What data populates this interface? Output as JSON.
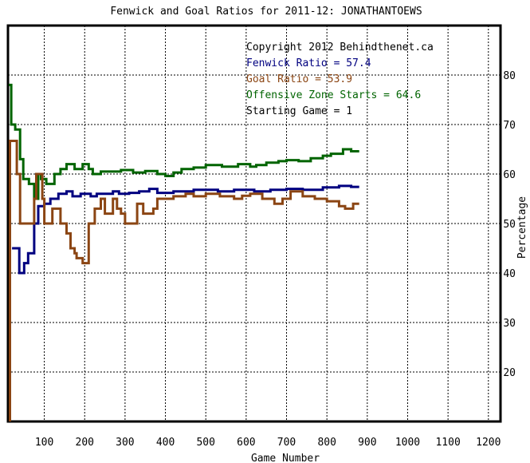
{
  "chart_data": {
    "type": "line",
    "title": "Fenwick and Goal Ratios for 2011-12: JONATHANTOEWS",
    "xlabel": "Game Number",
    "ylabel": "Percentage",
    "xlim": [
      10,
      1230
    ],
    "ylim": [
      10,
      90
    ],
    "x_ticks": [
      100,
      200,
      300,
      400,
      500,
      600,
      700,
      800,
      900,
      1000,
      1100,
      1200
    ],
    "y_ticks": [
      20,
      30,
      40,
      50,
      60,
      70,
      80
    ],
    "grid": true,
    "legend_position": "top-right",
    "annotations": [
      {
        "text": "Copyright 2012 Behindthenet.ca",
        "color": "#000000"
      },
      {
        "text": "Fenwick Ratio = 57.4",
        "color": "#000080"
      },
      {
        "text": "Goal Ratio = 53.9",
        "color": "#8B4513"
      },
      {
        "text": "Offensive Zone Starts = 64.6",
        "color": "#006400"
      },
      {
        "text": "Starting Game = 1",
        "color": "#000000"
      }
    ],
    "series": [
      {
        "color": "#006400",
        "points": [
          [
            12,
            78
          ],
          [
            18,
            78
          ],
          [
            18,
            70
          ],
          [
            28,
            70
          ],
          [
            28,
            69
          ],
          [
            40,
            69
          ],
          [
            40,
            63
          ],
          [
            48,
            63
          ],
          [
            48,
            59
          ],
          [
            62,
            59
          ],
          [
            62,
            58
          ],
          [
            75,
            58
          ],
          [
            75,
            55
          ],
          [
            85,
            55
          ],
          [
            85,
            60
          ],
          [
            92,
            60
          ],
          [
            92,
            59
          ],
          [
            105,
            59
          ],
          [
            105,
            58
          ],
          [
            125,
            58
          ],
          [
            125,
            60
          ],
          [
            140,
            60
          ],
          [
            140,
            61
          ],
          [
            155,
            61
          ],
          [
            155,
            62
          ],
          [
            175,
            62
          ],
          [
            175,
            61
          ],
          [
            195,
            61
          ],
          [
            195,
            62
          ],
          [
            210,
            62
          ],
          [
            210,
            61
          ],
          [
            220,
            61
          ],
          [
            220,
            60
          ],
          [
            240,
            60
          ],
          [
            240,
            60.5
          ],
          [
            290,
            60.5
          ],
          [
            290,
            60.8
          ],
          [
            320,
            60.8
          ],
          [
            320,
            60.3
          ],
          [
            350,
            60.3
          ],
          [
            350,
            60.6
          ],
          [
            380,
            60.6
          ],
          [
            380,
            60
          ],
          [
            400,
            60
          ],
          [
            400,
            59.6
          ],
          [
            420,
            59.6
          ],
          [
            420,
            60.3
          ],
          [
            440,
            60.3
          ],
          [
            440,
            61
          ],
          [
            470,
            61
          ],
          [
            470,
            61.3
          ],
          [
            500,
            61.3
          ],
          [
            500,
            61.8
          ],
          [
            540,
            61.8
          ],
          [
            540,
            61.5
          ],
          [
            580,
            61.5
          ],
          [
            580,
            62
          ],
          [
            610,
            62
          ],
          [
            610,
            61.5
          ],
          [
            625,
            61.5
          ],
          [
            625,
            61.8
          ],
          [
            650,
            61.8
          ],
          [
            650,
            62.3
          ],
          [
            680,
            62.3
          ],
          [
            680,
            62.6
          ],
          [
            700,
            62.6
          ],
          [
            700,
            62.8
          ],
          [
            730,
            62.8
          ],
          [
            730,
            62.6
          ],
          [
            760,
            62.6
          ],
          [
            760,
            63.2
          ],
          [
            790,
            63.2
          ],
          [
            790,
            63.7
          ],
          [
            810,
            63.7
          ],
          [
            810,
            64.1
          ],
          [
            840,
            64.1
          ],
          [
            840,
            65
          ],
          [
            860,
            65
          ],
          [
            860,
            64.6
          ],
          [
            880,
            64.6
          ]
        ]
      },
      {
        "color": "#000080",
        "points": [
          [
            20,
            45
          ],
          [
            38,
            45
          ],
          [
            38,
            40
          ],
          [
            50,
            40
          ],
          [
            50,
            42
          ],
          [
            60,
            42
          ],
          [
            60,
            44
          ],
          [
            75,
            44
          ],
          [
            75,
            50
          ],
          [
            85,
            50
          ],
          [
            85,
            53.5
          ],
          [
            100,
            53.5
          ],
          [
            100,
            54
          ],
          [
            115,
            54
          ],
          [
            115,
            55
          ],
          [
            135,
            55
          ],
          [
            135,
            56
          ],
          [
            155,
            56
          ],
          [
            155,
            56.5
          ],
          [
            170,
            56.5
          ],
          [
            170,
            55.5
          ],
          [
            190,
            55.5
          ],
          [
            190,
            56
          ],
          [
            215,
            56
          ],
          [
            215,
            55.5
          ],
          [
            230,
            55.5
          ],
          [
            230,
            56
          ],
          [
            270,
            56
          ],
          [
            270,
            56.5
          ],
          [
            285,
            56.5
          ],
          [
            285,
            56
          ],
          [
            310,
            56
          ],
          [
            310,
            56.2
          ],
          [
            335,
            56.2
          ],
          [
            335,
            56.5
          ],
          [
            360,
            56.5
          ],
          [
            360,
            57
          ],
          [
            380,
            57
          ],
          [
            380,
            56.2
          ],
          [
            420,
            56.2
          ],
          [
            420,
            56.5
          ],
          [
            470,
            56.5
          ],
          [
            470,
            56.8
          ],
          [
            530,
            56.8
          ],
          [
            530,
            56.5
          ],
          [
            570,
            56.5
          ],
          [
            570,
            56.8
          ],
          [
            620,
            56.8
          ],
          [
            620,
            56.5
          ],
          [
            660,
            56.5
          ],
          [
            660,
            56.8
          ],
          [
            700,
            56.8
          ],
          [
            700,
            57
          ],
          [
            740,
            57
          ],
          [
            740,
            56.8
          ],
          [
            790,
            56.8
          ],
          [
            790,
            57.3
          ],
          [
            830,
            57.3
          ],
          [
            830,
            57.6
          ],
          [
            860,
            57.6
          ],
          [
            860,
            57.4
          ],
          [
            880,
            57.4
          ]
        ]
      },
      {
        "color": "#8B4513",
        "points": [
          [
            15,
            10
          ],
          [
            15,
            66.7
          ],
          [
            32,
            66.7
          ],
          [
            32,
            60
          ],
          [
            40,
            60
          ],
          [
            40,
            50
          ],
          [
            75,
            50
          ],
          [
            75,
            55
          ],
          [
            80,
            55
          ],
          [
            80,
            60
          ],
          [
            95,
            60
          ],
          [
            95,
            55
          ],
          [
            100,
            55
          ],
          [
            100,
            50
          ],
          [
            120,
            50
          ],
          [
            120,
            53
          ],
          [
            140,
            53
          ],
          [
            140,
            50
          ],
          [
            155,
            50
          ],
          [
            155,
            48
          ],
          [
            165,
            48
          ],
          [
            165,
            45
          ],
          [
            175,
            45
          ],
          [
            175,
            44
          ],
          [
            180,
            44
          ],
          [
            180,
            43
          ],
          [
            195,
            43
          ],
          [
            195,
            42
          ],
          [
            210,
            42
          ],
          [
            210,
            50
          ],
          [
            225,
            50
          ],
          [
            225,
            53
          ],
          [
            240,
            53
          ],
          [
            240,
            55
          ],
          [
            250,
            55
          ],
          [
            250,
            52
          ],
          [
            270,
            52
          ],
          [
            270,
            55
          ],
          [
            280,
            55
          ],
          [
            280,
            53
          ],
          [
            290,
            53
          ],
          [
            290,
            52
          ],
          [
            300,
            52
          ],
          [
            300,
            50
          ],
          [
            330,
            50
          ],
          [
            330,
            54
          ],
          [
            345,
            54
          ],
          [
            345,
            52
          ],
          [
            370,
            52
          ],
          [
            370,
            53
          ],
          [
            380,
            53
          ],
          [
            380,
            55
          ],
          [
            420,
            55
          ],
          [
            420,
            55.5
          ],
          [
            450,
            55.5
          ],
          [
            450,
            56
          ],
          [
            470,
            56
          ],
          [
            470,
            55.5
          ],
          [
            500,
            55.5
          ],
          [
            500,
            56
          ],
          [
            535,
            56
          ],
          [
            535,
            55.5
          ],
          [
            570,
            55.5
          ],
          [
            570,
            55
          ],
          [
            590,
            55
          ],
          [
            590,
            55.6
          ],
          [
            610,
            55.6
          ],
          [
            610,
            56
          ],
          [
            640,
            56
          ],
          [
            640,
            55
          ],
          [
            670,
            55
          ],
          [
            670,
            54
          ],
          [
            690,
            54
          ],
          [
            690,
            55
          ],
          [
            710,
            55
          ],
          [
            710,
            56.5
          ],
          [
            740,
            56.5
          ],
          [
            740,
            55.5
          ],
          [
            770,
            55.5
          ],
          [
            770,
            55
          ],
          [
            800,
            55
          ],
          [
            800,
            54.5
          ],
          [
            830,
            54.5
          ],
          [
            830,
            53.5
          ],
          [
            845,
            53.5
          ],
          [
            845,
            53
          ],
          [
            865,
            53
          ],
          [
            865,
            54
          ],
          [
            880,
            54
          ]
        ]
      }
    ]
  }
}
